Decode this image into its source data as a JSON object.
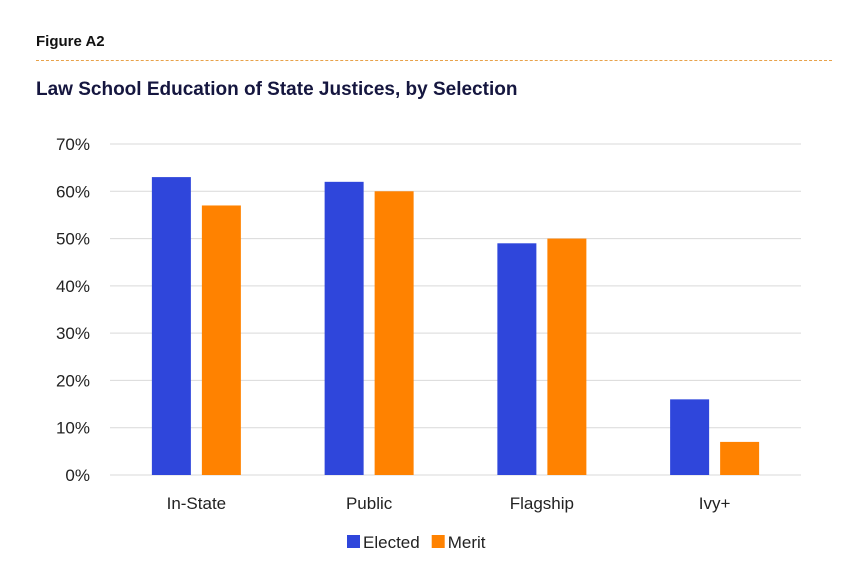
{
  "header": {
    "figure_label": "Figure A2"
  },
  "colors": {
    "elected": "#2f46db",
    "merit": "#ff8200",
    "grid": "#d9d9d9",
    "divider": "#e8a24a"
  },
  "chart_data": {
    "type": "bar",
    "title": "Law School Education of State Justices, by Selection",
    "xlabel": "",
    "ylabel": "",
    "categories": [
      "In-State",
      "Public",
      "Flagship",
      "Ivy+"
    ],
    "series": [
      {
        "name": "Elected",
        "values": [
          63,
          62,
          49,
          16
        ]
      },
      {
        "name": "Merit",
        "values": [
          57,
          60,
          50,
          7
        ]
      }
    ],
    "ylim": [
      0,
      70
    ],
    "yticks": [
      "0%",
      "10%",
      "20%",
      "30%",
      "40%",
      "50%",
      "60%",
      "70%"
    ],
    "grid": true,
    "legend_position": "bottom"
  }
}
